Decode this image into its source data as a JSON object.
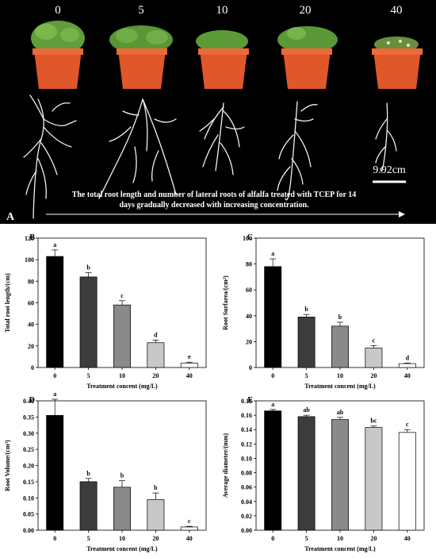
{
  "panel_a": {
    "letter": "A",
    "concentrations": [
      "0",
      "5",
      "10",
      "20",
      "40"
    ],
    "scale_bar_label": "9.92cm",
    "caption_line1": "The total root length and number of lateral roots of alfalfa treated with TCEP for 14",
    "caption_line2": "days gradually decreased with increasing concentration."
  },
  "chart_data": [
    {
      "panel": "B",
      "type": "bar",
      "categories": [
        "0",
        "5",
        "10",
        "20",
        "40"
      ],
      "values": [
        103,
        84,
        58,
        23,
        4
      ],
      "errors": [
        6,
        4,
        4,
        2.5,
        1
      ],
      "letters": [
        "a",
        "b",
        "c",
        "d",
        "e"
      ],
      "xlabel": "Treatment concent (mg/L)",
      "ylabel": "Total root length/(cm)",
      "ylim": [
        0,
        120
      ],
      "yticks": [
        0,
        20,
        40,
        60,
        80,
        100,
        120
      ],
      "tick_decimals": 0,
      "bar_colors": [
        "#000000",
        "#3c3c3c",
        "#8a8a8a",
        "#c8c8c8",
        "#ffffff"
      ]
    },
    {
      "panel": "C",
      "type": "bar",
      "categories": [
        "0",
        "5",
        "10",
        "20",
        "40"
      ],
      "values": [
        78,
        39,
        32,
        15,
        3
      ],
      "errors": [
        6,
        2,
        3,
        2,
        0.5
      ],
      "letters": [
        "a",
        "b",
        "b",
        "c",
        "d"
      ],
      "xlabel": "Treatment concent (mg/L)",
      "ylabel": "Root Surfarea/(cm²)",
      "ylim": [
        0,
        100
      ],
      "yticks": [
        0,
        20,
        40,
        60,
        80,
        100
      ],
      "tick_decimals": 0,
      "bar_colors": [
        "#000000",
        "#3c3c3c",
        "#8a8a8a",
        "#c8c8c8",
        "#ffffff"
      ]
    },
    {
      "panel": "D",
      "type": "bar",
      "categories": [
        "0",
        "5",
        "10",
        "20",
        "40"
      ],
      "values": [
        0.355,
        0.15,
        0.133,
        0.095,
        0.01
      ],
      "errors": [
        0.05,
        0.01,
        0.02,
        0.02,
        0.002
      ],
      "letters": [
        "a",
        "b",
        "b",
        "b",
        "c"
      ],
      "xlabel": "Treatment concent (mg/L)",
      "ylabel": "Root Volume/(cm³)",
      "ylim": [
        0,
        0.4
      ],
      "yticks": [
        0,
        0.05,
        0.1,
        0.15,
        0.2,
        0.25,
        0.3,
        0.35,
        0.4
      ],
      "tick_decimals": 2,
      "bar_colors": [
        "#000000",
        "#3c3c3c",
        "#8a8a8a",
        "#c8c8c8",
        "#ffffff"
      ]
    },
    {
      "panel": "E",
      "type": "bar",
      "categories": [
        "0",
        "5",
        "10",
        "20",
        "40"
      ],
      "values": [
        0.166,
        0.158,
        0.154,
        0.143,
        0.136
      ],
      "errors": [
        0.002,
        0.002,
        0.003,
        0.002,
        0.004
      ],
      "letters": [
        "a",
        "ab",
        "ab",
        "bc",
        "c"
      ],
      "xlabel": "Treatment concent (mg/L)",
      "ylabel": "Average diameter/(mm)",
      "ylim": [
        0,
        0.18
      ],
      "yticks": [
        0,
        0.02,
        0.04,
        0.06,
        0.08,
        0.1,
        0.12,
        0.14,
        0.16,
        0.18
      ],
      "tick_decimals": 2,
      "bar_colors": [
        "#000000",
        "#3c3c3c",
        "#8a8a8a",
        "#c8c8c8",
        "#ffffff"
      ]
    }
  ]
}
